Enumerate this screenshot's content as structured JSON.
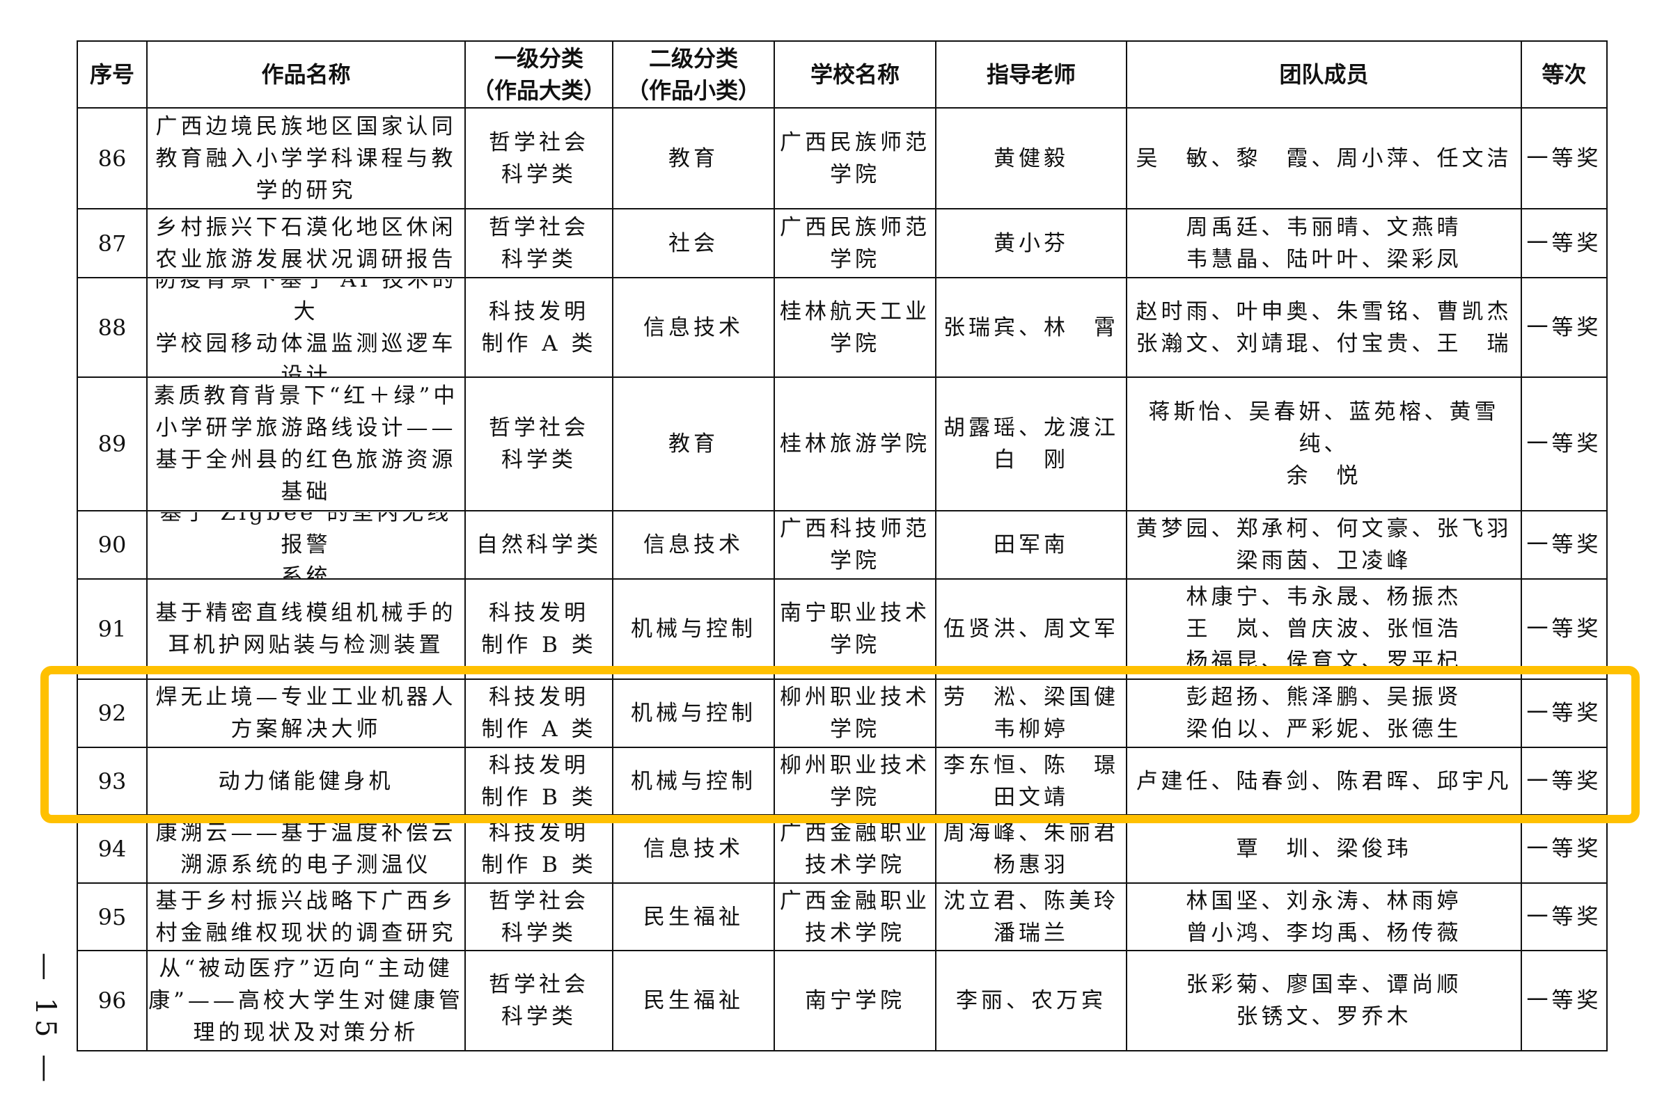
{
  "headers": [
    "序号",
    "作品名称",
    "一级分类\n（作品大类）",
    "二级分类\n（作品小类）",
    "学校名称",
    "指导老师",
    "团队成员",
    "等次"
  ],
  "rows": [
    [
      "86",
      "广西边境民族地区国家认同\n教育融入小学学科课程与教\n学的研究",
      "哲学社会\n科学类",
      "教育",
      "广西民族师范\n学院",
      "黄健毅",
      "吴　敏、黎　霞、周小萍、任文洁",
      "一等奖"
    ],
    [
      "87",
      "乡村振兴下石漠化地区休闲\n农业旅游发展状况调研报告",
      "哲学社会\n科学类",
      "社会",
      "广西民族师范\n学院",
      "黄小芬",
      "周禹廷、韦丽晴、文燕晴\n韦慧晶、陆叶叶、梁彩凤",
      "一等奖"
    ],
    [
      "88",
      "防疫背景下基于 AI 技术的大\n学校园移动体温监测巡逻车\n设计",
      "科技发明\n制作 A 类",
      "信息技术",
      "桂林航天工业\n学院",
      "张瑞宾、林　霄",
      "赵时雨、叶申奥、朱雪铭、曹凯杰\n张瀚文、刘靖琨、付宝贵、王　瑞",
      "一等奖"
    ],
    [
      "89",
      "素质教育背景下“红＋绿”中\n小学研学旅游路线设计——\n基于全州县的红色旅游资源\n基础",
      "哲学社会\n科学类",
      "教育",
      "桂林旅游学院",
      "胡露瑶、龙渡江\n白　刚",
      "蒋斯怡、吴春妍、蓝苑榕、黄雪纯、\n余　悦",
      "一等奖"
    ],
    [
      "90",
      "基于 Zigbee 的室内无线报警\n系统",
      "自然科学类",
      "信息技术",
      "广西科技师范\n学院",
      "田军南",
      "黄梦园、郑承柯、何文豪、张飞羽\n梁雨茵、卫凌峰",
      "一等奖"
    ],
    [
      "91",
      "基于精密直线模组机械手的\n耳机护网贴装与检测装置",
      "科技发明\n制作 B 类",
      "机械与控制",
      "南宁职业技术\n学院",
      "伍贤洪、周文军",
      "林康宁、韦永晟、杨振杰\n王　岚、曾庆波、张恒浩\n杨福昆、侯育文、罗平杞",
      "一等奖"
    ],
    [
      "92",
      "焊无止境—专业工业机器人\n方案解决大师",
      "科技发明\n制作 A 类",
      "机械与控制",
      "柳州职业技术\n学院",
      "劳　淞、梁国健\n韦柳婷",
      "彭超扬、熊泽鹏、吴振贤\n梁伯以、严彩妮、张德生",
      "一等奖"
    ],
    [
      "93",
      "动力储能健身机",
      "科技发明\n制作 B 类",
      "机械与控制",
      "柳州职业技术\n学院",
      "李东恒、陈　璟\n田文靖",
      "卢建任、陆春剑、陈君晖、邱宇凡",
      "一等奖"
    ],
    [
      "94",
      "康溯云——基于温度补偿云\n溯源系统的电子测温仪",
      "科技发明\n制作 B 类",
      "信息技术",
      "广西金融职业\n技术学院",
      "周海峰、朱丽君\n杨惠羽",
      "覃　圳、梁俊玮",
      "一等奖"
    ],
    [
      "95",
      "基于乡村振兴战略下广西乡\n村金融维权现状的调查研究",
      "哲学社会\n科学类",
      "民生福祉",
      "广西金融职业\n技术学院",
      "沈立君、陈美玲\n潘瑞兰",
      "林国坚、刘永涛、林雨婷\n曾小鸿、李均禹、杨传薇",
      "一等奖"
    ],
    [
      "96",
      "从“被动医疗”迈向“主动健\n康”——高校大学生对健康管\n理的现状及对策分析",
      "哲学社会\n科学类",
      "民生福祉",
      "南宁学院",
      "李丽、农万宾",
      "张彩菊、廖国幸、谭尚顺\n张锈文、罗乔木",
      "一等奖"
    ]
  ],
  "highlight": {
    "rows": [
      "92",
      "93"
    ],
    "color": "#FFC000"
  },
  "page_number": "— 15 —"
}
